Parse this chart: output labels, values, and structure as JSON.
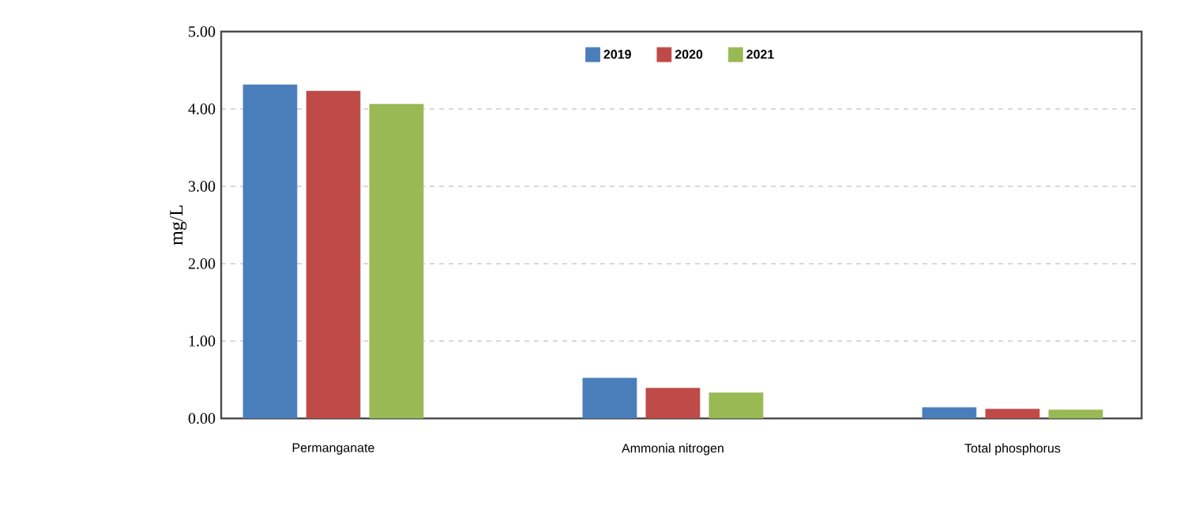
{
  "chart_data": {
    "type": "bar",
    "ylabel": "mg/L",
    "categories": [
      "Permanganate",
      "Ammonia nitrogen",
      "Total phosphorus"
    ],
    "series": [
      {
        "name": "2019",
        "color": "#4a7ebb",
        "values": [
          4.31,
          0.52,
          0.14
        ]
      },
      {
        "name": "2020",
        "color": "#be4b48",
        "values": [
          4.23,
          0.39,
          0.12
        ]
      },
      {
        "name": "2021",
        "color": "#98b954",
        "values": [
          4.06,
          0.33,
          0.11
        ]
      }
    ],
    "ylim": [
      0,
      5
    ],
    "yticks": [
      {
        "value": 0,
        "label": "0.00"
      },
      {
        "value": 1,
        "label": "1.00"
      },
      {
        "value": 2,
        "label": "2.00"
      },
      {
        "value": 3,
        "label": "3.00"
      },
      {
        "value": 4,
        "label": "4.00"
      },
      {
        "value": 5,
        "label": "5.00"
      }
    ],
    "grid": "y",
    "legend": "top"
  }
}
